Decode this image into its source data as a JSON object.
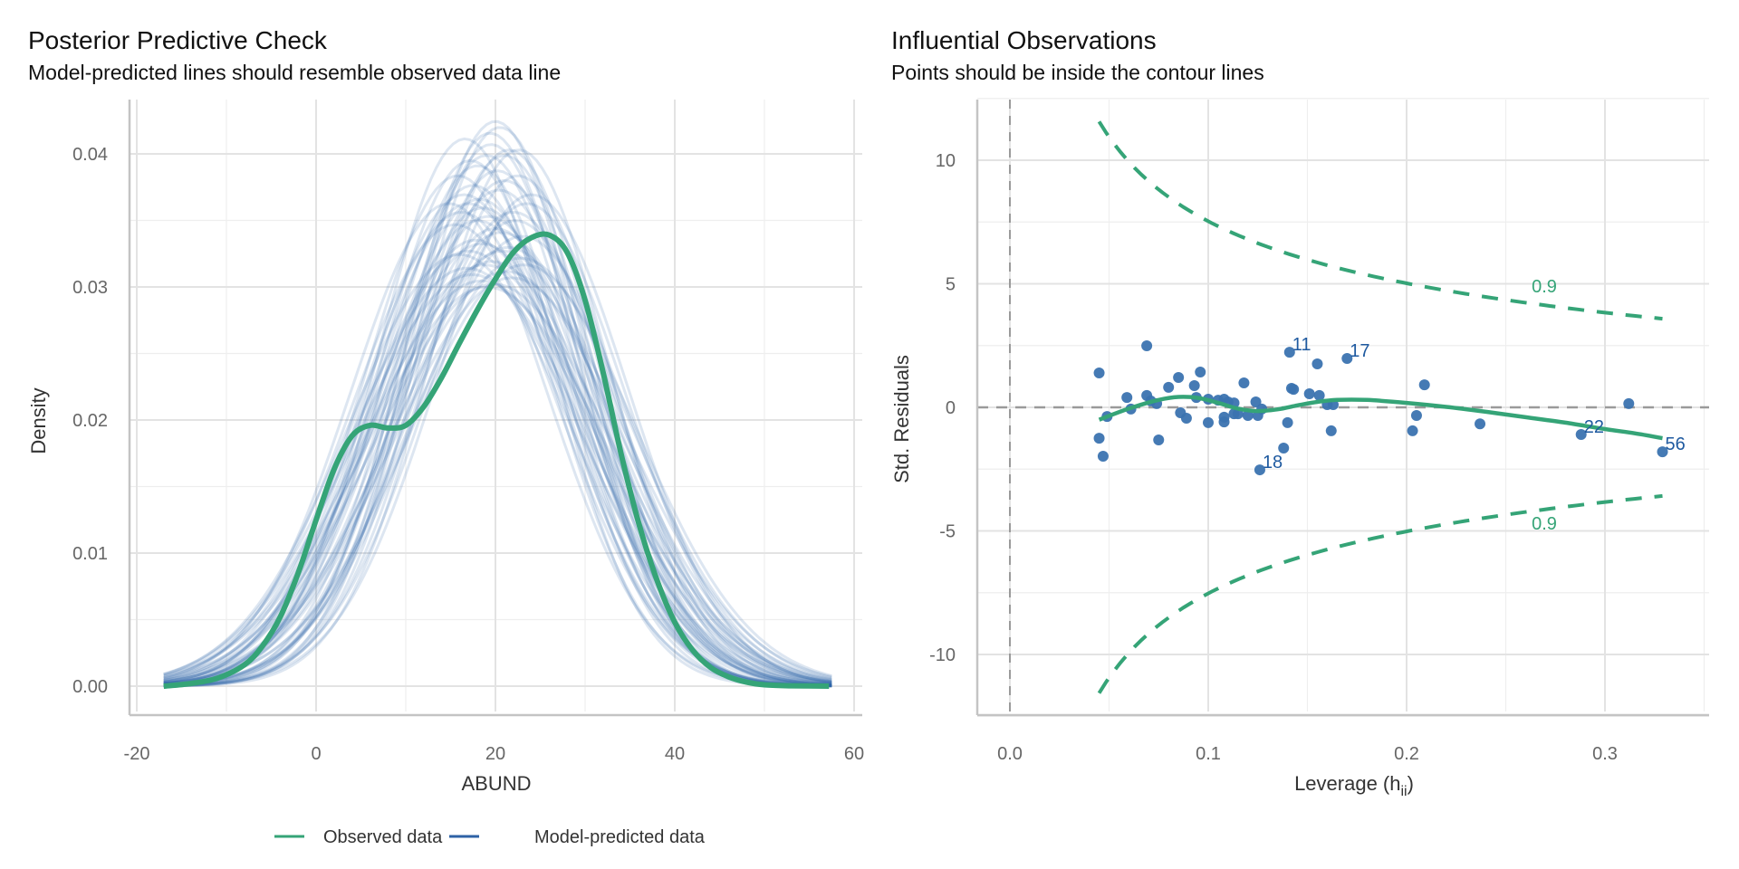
{
  "colors": {
    "observed": "#35a477",
    "predicted": "#2e62a6",
    "points": "#3b73b0",
    "point_labels": "#1f5aa0",
    "contour": "#35a477",
    "reference": "#9a9a9a",
    "grid": "#e3e3e3",
    "axis": "#c4c4c4"
  },
  "chart_data": [
    {
      "type": "line",
      "title": "Posterior Predictive Check",
      "subtitle": "Model-predicted lines should resemble observed data line",
      "xlabel": "ABUND",
      "ylabel": "Density",
      "xlim": [
        -22,
        62
      ],
      "ylim": [
        -0.0018,
        0.0425
      ],
      "xticks": [
        -20,
        0,
        20,
        40,
        60
      ],
      "xtick_labels": [
        "-20",
        "0",
        "20",
        "40",
        "60"
      ],
      "yticks": [
        0.0,
        0.01,
        0.02,
        0.03,
        0.04
      ],
      "ytick_labels": [
        "0.00",
        "0.01",
        "0.02",
        "0.03",
        "0.04"
      ],
      "grid": true,
      "legend": {
        "placement": "bottom",
        "entries": [
          {
            "label": "Observed data",
            "series": "observed"
          },
          {
            "label": "Model-predicted data",
            "series": "predicted"
          }
        ]
      },
      "observed": {
        "name": "Observed data",
        "x": [
          -17,
          -14,
          -11,
          -8,
          -6,
          -4,
          -2,
          0,
          2,
          4,
          6,
          8,
          10,
          12,
          14,
          16,
          18,
          20,
          22,
          24,
          26,
          28,
          30,
          32,
          34,
          36,
          38,
          40,
          42,
          44,
          46,
          48,
          50,
          53,
          57.2
        ],
        "y": [
          0.0,
          0.0002,
          0.0006,
          0.0016,
          0.003,
          0.0052,
          0.0085,
          0.0125,
          0.0163,
          0.0188,
          0.0196,
          0.0194,
          0.0196,
          0.021,
          0.0232,
          0.0258,
          0.0283,
          0.0306,
          0.0326,
          0.0337,
          0.0339,
          0.0326,
          0.029,
          0.0236,
          0.0175,
          0.0122,
          0.008,
          0.0048,
          0.0027,
          0.0014,
          0.0007,
          0.0003,
          0.0001,
          3e-05,
          0.0
        ]
      },
      "predicted": {
        "name": "Model-predicted data",
        "x_range": [
          -17,
          57.5
        ],
        "draws_mean_sd": [
          [
            18.0,
            10.2
          ],
          [
            19.5,
            9.8
          ],
          [
            20.5,
            9.5
          ],
          [
            17.0,
            11.0
          ],
          [
            21.0,
            10.5
          ],
          [
            16.5,
            10.8
          ],
          [
            22.0,
            11.2
          ],
          [
            18.5,
            12.0
          ],
          [
            20.0,
            11.6
          ],
          [
            19.0,
            10.0
          ],
          [
            15.5,
            11.5
          ],
          [
            23.0,
            11.8
          ],
          [
            17.5,
            10.6
          ],
          [
            21.5,
            9.9
          ],
          [
            18.8,
            12.6
          ],
          [
            20.8,
            12.2
          ],
          [
            16.0,
            12.3
          ],
          [
            22.5,
            10.4
          ],
          [
            19.2,
            11.3
          ],
          [
            17.8,
            11.9
          ],
          [
            21.2,
            12.8
          ],
          [
            18.2,
            10.9
          ],
          [
            20.2,
            10.3
          ],
          [
            16.8,
            12.7
          ],
          [
            22.8,
            12.4
          ],
          [
            19.8,
            13.2
          ],
          [
            17.2,
            10.1
          ],
          [
            23.5,
            11.0
          ],
          [
            18.6,
            11.1
          ],
          [
            20.6,
            11.7
          ],
          [
            15.8,
            10.4
          ],
          [
            21.8,
            13.0
          ],
          [
            19.4,
            9.6
          ],
          [
            17.4,
            12.9
          ],
          [
            22.2,
            11.4
          ],
          [
            18.4,
            13.1
          ],
          [
            20.4,
            10.7
          ],
          [
            16.2,
            11.2
          ],
          [
            21.4,
            12.1
          ],
          [
            19.6,
            12.5
          ],
          [
            24.0,
            10.8
          ],
          [
            14.8,
            11.0
          ],
          [
            20.0,
            9.4
          ],
          [
            18.0,
            11.4
          ],
          [
            22.6,
            9.9
          ],
          [
            17.0,
            12.2
          ],
          [
            21.0,
            10.0
          ],
          [
            19.0,
            13.3
          ],
          [
            16.6,
            9.7
          ],
          [
            23.2,
            12.6
          ]
        ]
      }
    },
    {
      "type": "scatter",
      "title": "Influential Observations",
      "subtitle": "Points should be inside the contour lines",
      "xlabel_main": "Leverage (h",
      "xlabel_sub": "ii",
      "xlabel_close": ")",
      "ylabel": "Std. Residuals",
      "xlim": [
        -0.017,
        0.353
      ],
      "ylim": [
        -12.6,
        12.6
      ],
      "xticks": [
        0.0,
        0.1,
        0.2,
        0.3
      ],
      "xtick_labels": [
        "0.0",
        "0.1",
        "0.2",
        "0.3"
      ],
      "yticks": [
        -10,
        -5,
        0,
        5,
        10
      ],
      "ytick_labels": [
        "-10",
        "-5",
        "0",
        "5",
        "10"
      ],
      "grid": true,
      "reference_lines": {
        "x": 0,
        "y": 0
      },
      "cooks_contour": {
        "level": 0.9,
        "label": "0.9",
        "n_params": 7,
        "h_range": [
          0.045,
          0.329
        ]
      },
      "points": [
        {
          "h": 0.045,
          "r": 1.39
        },
        {
          "h": 0.047,
          "r": -1.98
        },
        {
          "h": 0.045,
          "r": -1.25
        },
        {
          "h": 0.049,
          "r": -0.37
        },
        {
          "h": 0.059,
          "r": 0.4
        },
        {
          "h": 0.061,
          "r": -0.07
        },
        {
          "h": 0.069,
          "r": 2.49
        },
        {
          "h": 0.069,
          "r": 0.48
        },
        {
          "h": 0.071,
          "r": 0.26
        },
        {
          "h": 0.075,
          "r": -1.32
        },
        {
          "h": 0.074,
          "r": 0.15
        },
        {
          "h": 0.08,
          "r": 0.81
        },
        {
          "h": 0.085,
          "r": 1.21
        },
        {
          "h": 0.086,
          "r": -0.22
        },
        {
          "h": 0.089,
          "r": -0.44
        },
        {
          "h": 0.093,
          "r": 0.88
        },
        {
          "h": 0.096,
          "r": 1.43
        },
        {
          "h": 0.094,
          "r": 0.4
        },
        {
          "h": 0.1,
          "r": 0.33
        },
        {
          "h": 0.1,
          "r": -0.62
        },
        {
          "h": 0.105,
          "r": 0.29
        },
        {
          "h": 0.108,
          "r": 0.33
        },
        {
          "h": 0.11,
          "r": 0.22
        },
        {
          "h": 0.108,
          "r": -0.4
        },
        {
          "h": 0.108,
          "r": -0.59
        },
        {
          "h": 0.113,
          "r": 0.18
        },
        {
          "h": 0.113,
          "r": -0.26
        },
        {
          "h": 0.115,
          "r": -0.26
        },
        {
          "h": 0.118,
          "r": 0.99
        },
        {
          "h": 0.12,
          "r": -0.33
        },
        {
          "h": 0.124,
          "r": 0.22
        },
        {
          "h": 0.125,
          "r": -0.33
        },
        {
          "h": 0.127,
          "r": -0.07
        },
        {
          "h": 0.126,
          "r": -2.53,
          "label": "18"
        },
        {
          "h": 0.138,
          "r": -1.65
        },
        {
          "h": 0.14,
          "r": -0.62
        },
        {
          "h": 0.141,
          "r": 2.23,
          "label": "11"
        },
        {
          "h": 0.142,
          "r": 0.77
        },
        {
          "h": 0.143,
          "r": 0.73
        },
        {
          "h": 0.151,
          "r": 0.55
        },
        {
          "h": 0.155,
          "r": 1.76
        },
        {
          "h": 0.156,
          "r": 0.48
        },
        {
          "h": 0.16,
          "r": 0.11
        },
        {
          "h": 0.163,
          "r": 0.11
        },
        {
          "h": 0.162,
          "r": -0.95
        },
        {
          "h": 0.17,
          "r": 1.98,
          "label": "17"
        },
        {
          "h": 0.203,
          "r": -0.95
        },
        {
          "h": 0.205,
          "r": -0.33
        },
        {
          "h": 0.209,
          "r": 0.91
        },
        {
          "h": 0.237,
          "r": -0.67
        },
        {
          "h": 0.288,
          "r": -1.1,
          "label": "22"
        },
        {
          "h": 0.312,
          "r": 0.15
        },
        {
          "h": 0.329,
          "r": -1.8,
          "label": "56"
        }
      ],
      "smooth": {
        "h": [
          0.045,
          0.06,
          0.075,
          0.085,
          0.095,
          0.105,
          0.115,
          0.125,
          0.135,
          0.145,
          0.155,
          0.165,
          0.18,
          0.2,
          0.22,
          0.24,
          0.26,
          0.28,
          0.3,
          0.315,
          0.329
        ],
        "r": [
          -0.5,
          -0.05,
          0.3,
          0.42,
          0.38,
          0.18,
          -0.05,
          -0.15,
          -0.08,
          0.08,
          0.22,
          0.3,
          0.3,
          0.18,
          0.02,
          -0.18,
          -0.4,
          -0.62,
          -0.88,
          -1.05,
          -1.25
        ]
      }
    }
  ]
}
